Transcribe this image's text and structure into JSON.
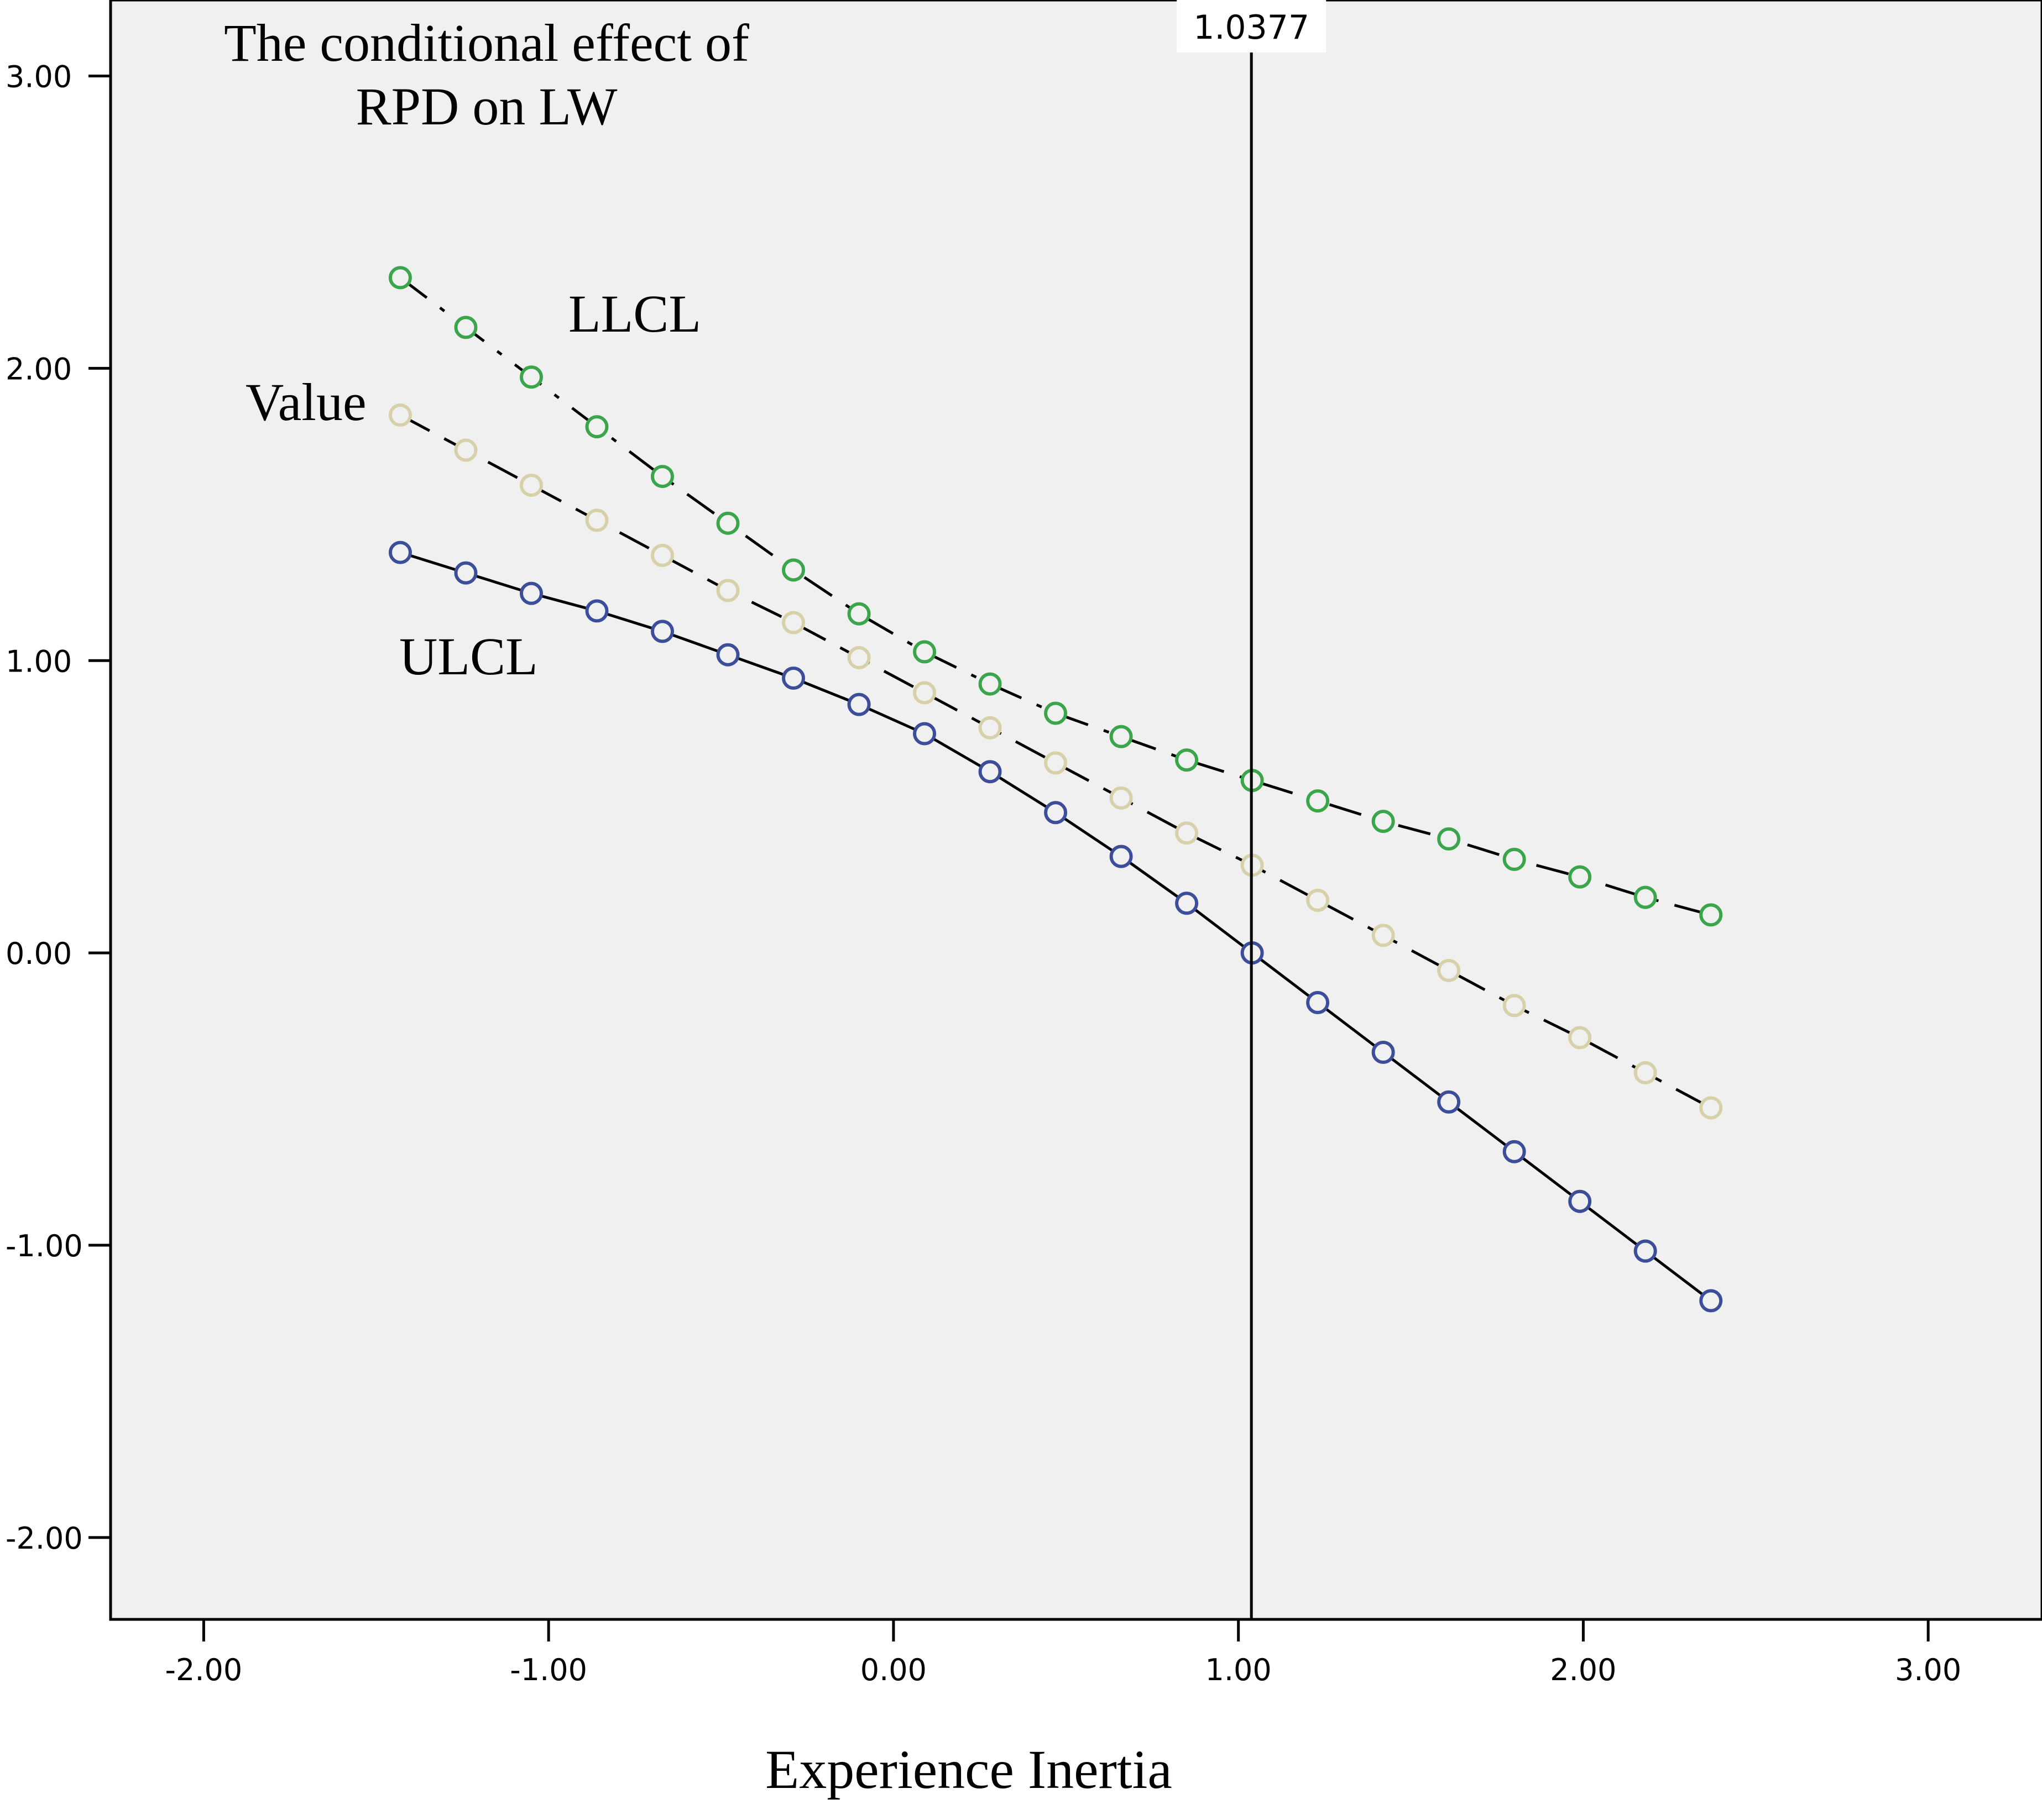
{
  "chart_data": {
    "type": "line",
    "title_lines": [
      "The conditional effect of",
      "RPD on LW"
    ],
    "xlabel": "Experience Inertia",
    "ylabel": "",
    "xlim": [
      -2.27,
      3.33
    ],
    "ylim": [
      -2.28,
      3.26
    ],
    "x_ticks": [
      {
        "value": -2,
        "label": "-2.00"
      },
      {
        "value": -1,
        "label": "-1.00"
      },
      {
        "value": 0,
        "label": "0.00"
      },
      {
        "value": 1,
        "label": "1.00"
      },
      {
        "value": 2,
        "label": "2.00"
      },
      {
        "value": 3,
        "label": "3.00"
      }
    ],
    "y_ticks": [
      {
        "value": 3,
        "label": "3.00"
      },
      {
        "value": 2,
        "label": "2.00"
      },
      {
        "value": 1,
        "label": "1.00"
      },
      {
        "value": 0,
        "label": "0.00"
      },
      {
        "value": -1,
        "label": "-1.00"
      },
      {
        "value": -2,
        "label": "-2.00"
      }
    ],
    "reference_line": {
      "x": 1.0377,
      "label": "1.0377"
    },
    "x": [
      -1.43,
      -1.24,
      -1.05,
      -0.86,
      -0.67,
      -0.48,
      -0.29,
      -0.1,
      0.09,
      0.28,
      0.47,
      0.66,
      0.85,
      1.04,
      1.23,
      1.42,
      1.61,
      1.8,
      1.99,
      2.18,
      2.37
    ],
    "series": [
      {
        "name": "LLCL",
        "color": "#3aa54a",
        "line_style": "dash-dot",
        "values": [
          2.31,
          2.14,
          1.97,
          1.8,
          1.63,
          1.47,
          1.31,
          1.16,
          1.03,
          0.92,
          0.82,
          0.74,
          0.66,
          0.59,
          0.52,
          0.45,
          0.39,
          0.32,
          0.26,
          0.19,
          0.13
        ]
      },
      {
        "name": "Value",
        "color": "#d8d0a8",
        "line_style": "dashed",
        "values": [
          1.84,
          1.72,
          1.6,
          1.48,
          1.36,
          1.24,
          1.13,
          1.01,
          0.89,
          0.77,
          0.65,
          0.53,
          0.41,
          0.3,
          0.18,
          0.06,
          -0.06,
          -0.18,
          -0.29,
          -0.41,
          -0.53
        ]
      },
      {
        "name": "ULCL",
        "color": "#3c4e9a",
        "line_style": "solid",
        "values": [
          1.37,
          1.3,
          1.23,
          1.17,
          1.1,
          1.02,
          0.94,
          0.85,
          0.75,
          0.62,
          0.48,
          0.33,
          0.17,
          0.0,
          -0.17,
          -0.34,
          -0.51,
          -0.68,
          -0.85,
          -1.02,
          -1.19
        ]
      }
    ],
    "series_labels": [
      "LLCL",
      "Value",
      "ULCL"
    ],
    "plot_background": "#f0f0f0",
    "grid": false
  }
}
